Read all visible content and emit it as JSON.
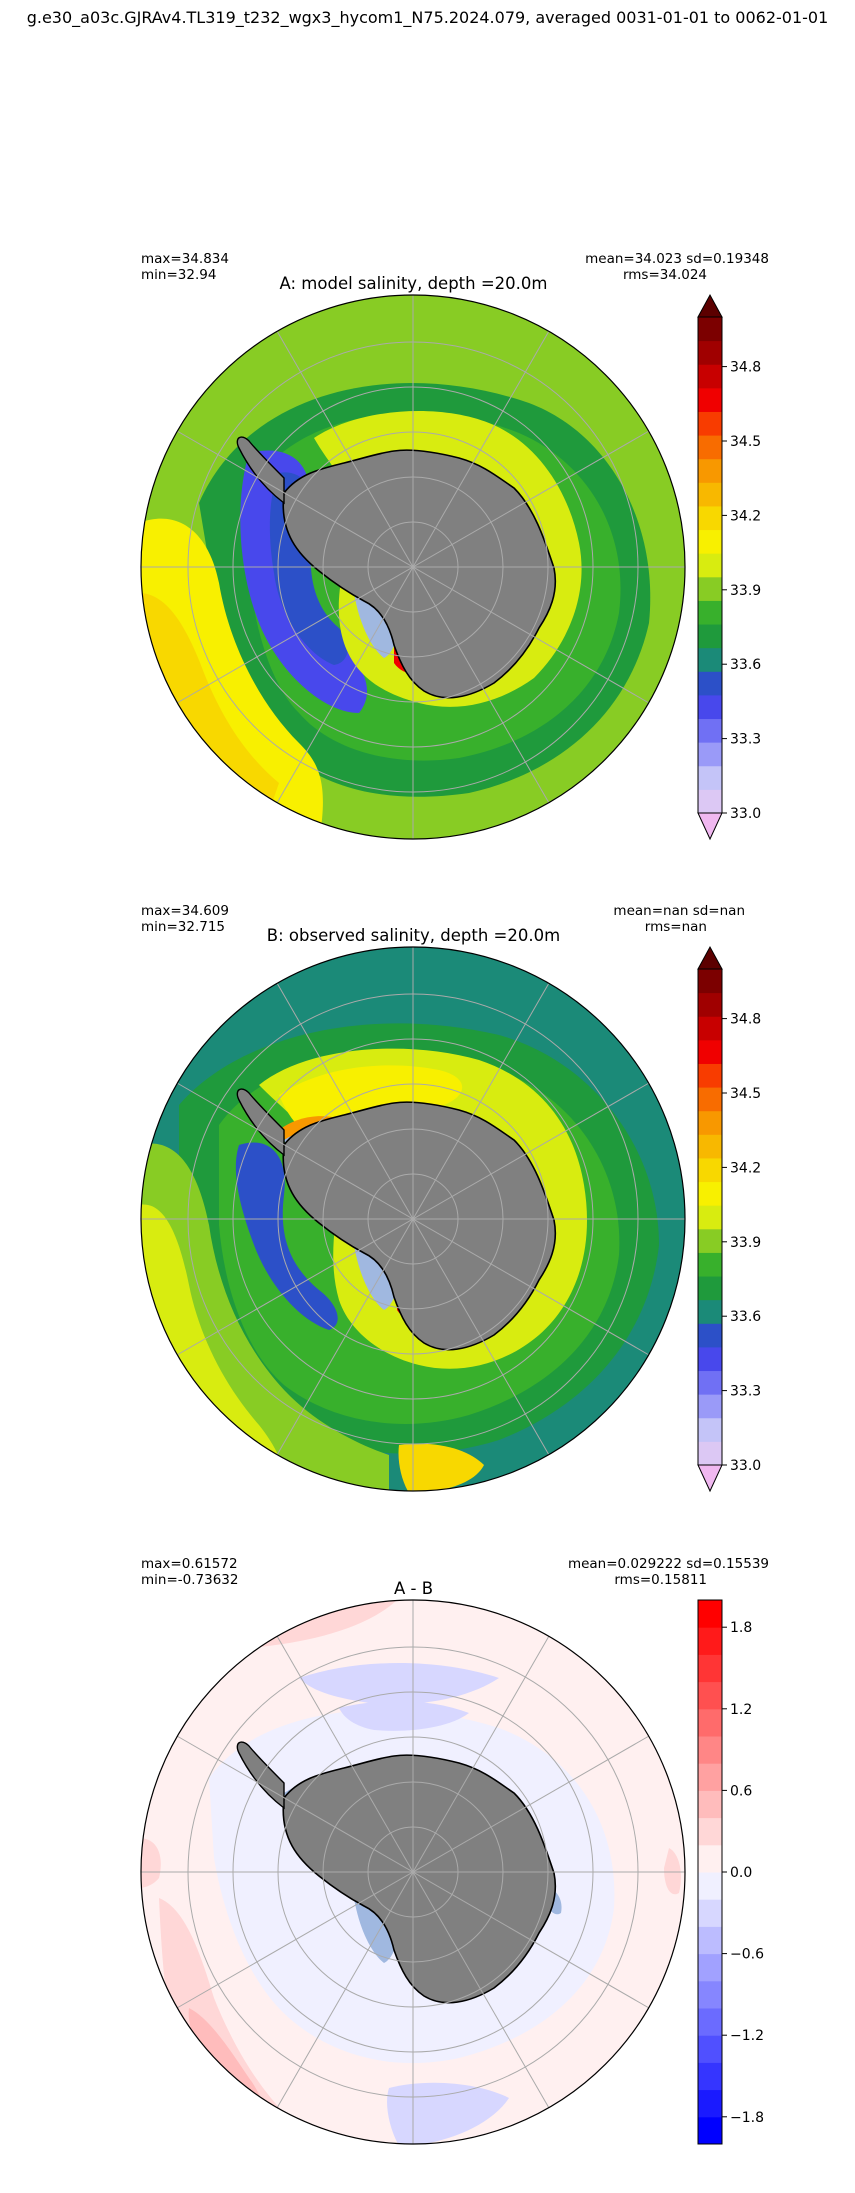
{
  "figure": {
    "suptitle": "g.e30_a03c.GJRAv4.TL319_t232_wgx3_hycom1_N75.2024.079, averaged 0031-01-01 to 0062-01-01"
  },
  "panels": [
    {
      "title": "A: model salinity, depth =20.0m",
      "stats_left_1": "max=34.834",
      "stats_left_2": "min=32.94",
      "stats_right_1": "mean=34.023 sd=0.19348",
      "stats_right_2": "rms=34.024",
      "colorbar": {
        "ticks": [
          "34.8",
          "34.5",
          "34.2",
          "33.9",
          "33.6",
          "33.3",
          "33.0"
        ],
        "tick_values": [
          34.8,
          34.5,
          34.2,
          33.9,
          33.6,
          33.3,
          33.0
        ],
        "range": [
          33.0,
          35.0
        ],
        "extend": "both",
        "colors": [
          "#f0b8f0",
          "#dcc8f4",
          "#c4c4f8",
          "#9a9af8",
          "#7070f4",
          "#4848ec",
          "#2c50c8",
          "#1b8a78",
          "#1f9a3c",
          "#38b02c",
          "#88cc24",
          "#d8ec10",
          "#f8f000",
          "#f8d800",
          "#f8b800",
          "#f89800",
          "#f86c00",
          "#f83c00",
          "#f00000",
          "#c80000",
          "#a00000",
          "#7c0000",
          "#5c0000"
        ]
      }
    },
    {
      "title": "B: observed salinity, depth =20.0m",
      "stats_left_1": "max=34.609",
      "stats_left_2": "min=32.715",
      "stats_right_1": "mean=nan sd=nan",
      "stats_right_2": "rms=nan",
      "colorbar": {
        "ticks": [
          "34.8",
          "34.5",
          "34.2",
          "33.9",
          "33.6",
          "33.3",
          "33.0"
        ],
        "tick_values": [
          34.8,
          34.5,
          34.2,
          33.9,
          33.6,
          33.3,
          33.0
        ],
        "range": [
          33.0,
          35.0
        ],
        "extend": "both",
        "colors": [
          "#f0b8f0",
          "#dcc8f4",
          "#c4c4f8",
          "#9a9af8",
          "#7070f4",
          "#4848ec",
          "#2c50c8",
          "#1b8a78",
          "#1f9a3c",
          "#38b02c",
          "#88cc24",
          "#d8ec10",
          "#f8f000",
          "#f8d800",
          "#f8b800",
          "#f89800",
          "#f86c00",
          "#f83c00",
          "#f00000",
          "#c80000",
          "#a00000",
          "#7c0000",
          "#5c0000"
        ]
      }
    },
    {
      "title": "A - B",
      "stats_left_1": "max=0.61572",
      "stats_left_2": "min=-0.73632",
      "stats_right_1": "mean=0.029222 sd=0.15539",
      "stats_right_2": "rms=0.15811",
      "colorbar": {
        "ticks": [
          "1.8",
          "1.2",
          "0.6",
          "0.0",
          "−0.6",
          "−1.2",
          "−1.8"
        ],
        "tick_values": [
          1.8,
          1.2,
          0.6,
          0.0,
          -0.6,
          -1.2,
          -1.8
        ],
        "range": [
          -2.0,
          2.0
        ],
        "extend": "neither",
        "colors": [
          "#0000ff",
          "#1a1aff",
          "#3535ff",
          "#5050ff",
          "#6b6bff",
          "#8686ff",
          "#a1a1ff",
          "#bcbcff",
          "#d7d7ff",
          "#f0f0ff",
          "#fff0f0",
          "#ffd7d7",
          "#ffbcbc",
          "#ffa1a1",
          "#ff8686",
          "#ff6b6b",
          "#ff5050",
          "#ff3535",
          "#ff1a1a",
          "#ff0000"
        ]
      }
    }
  ],
  "map_colors": {
    "land": "#808080",
    "ice_shelf": "#a0b8e0",
    "grid": "#aaaaaa"
  }
}
